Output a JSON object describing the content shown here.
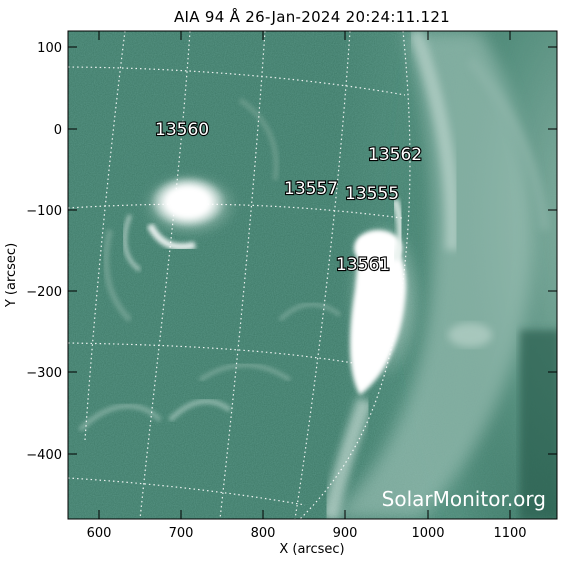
{
  "title": "AIA 94 Å 26-Jan-2024 20:24:11.121",
  "x_axis": {
    "label": "X (arcsec)",
    "ticks": [
      "600",
      "700",
      "800",
      "900",
      "1000",
      "1100"
    ]
  },
  "y_axis": {
    "label": "Y (arcsec)",
    "ticks": [
      "100",
      "0",
      "−100",
      "−200",
      "−300",
      "−400"
    ]
  },
  "active_regions": [
    "13560",
    "13557",
    "13555",
    "13562",
    "13561"
  ],
  "watermark": "SolarMonitor.org",
  "colors": {
    "background": "#ffffff",
    "image_dark": "#2f6b58",
    "image_mid": "#6f9f90",
    "image_bright": "#ffffff"
  }
}
